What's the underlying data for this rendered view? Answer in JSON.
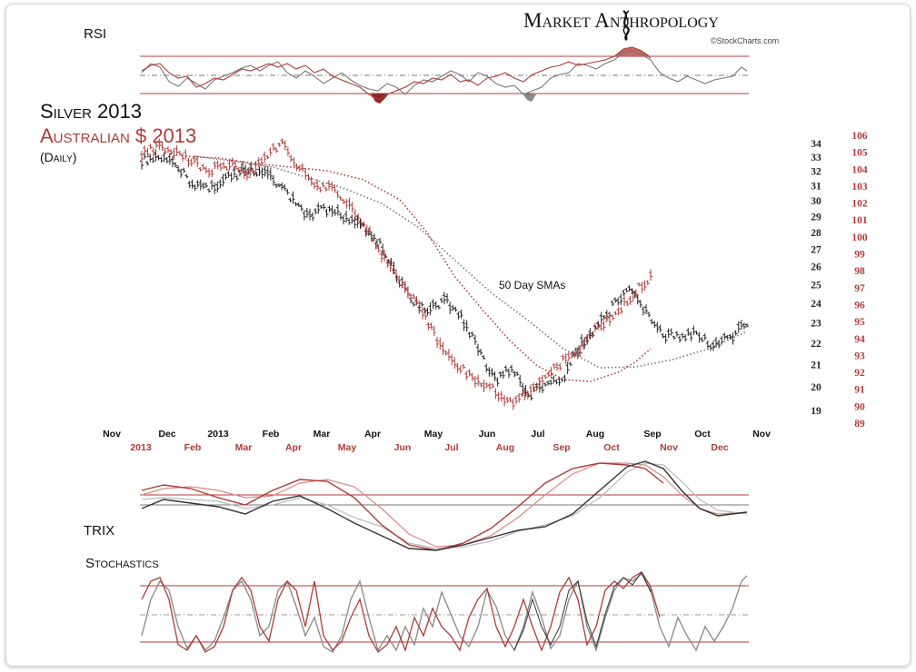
{
  "brand": {
    "name": "Market Anthropology",
    "credit": "©StockCharts.com"
  },
  "colors": {
    "silver": "#222222",
    "aud": "#b03a36",
    "silver_light": "#9a9a9a",
    "aud_light": "#d98a86"
  },
  "panels": {
    "rsi": "RSI",
    "trix": "TRIX",
    "stochastics": "Stochastics"
  },
  "chart_data": {
    "type": "line",
    "title": "Silver 2013",
    "subtitle": "Australian $ 2013",
    "period": "(Daily)",
    "annotation": "50 Day SMAs",
    "x_ticks_silver": [
      "Nov",
      "Dec",
      "2013",
      "Feb",
      "Mar",
      "Apr",
      "May",
      "Jun",
      "Jul",
      "Aug",
      "Sep",
      "Oct",
      "Nov"
    ],
    "x_ticks_aud": [
      "2013",
      "Feb",
      "Mar",
      "Apr",
      "May",
      "Jun",
      "Jul",
      "Aug",
      "Sep",
      "Oct",
      "Nov",
      "Dec"
    ],
    "y_ticks_silver": [
      "34",
      "33",
      "32",
      "31",
      "30",
      "29",
      "28",
      "27",
      "26",
      "25",
      "24",
      "23",
      "22",
      "21",
      "20",
      "19"
    ],
    "y_ticks_aud": [
      "106",
      "105",
      "104",
      "103",
      "102",
      "101",
      "100",
      "99",
      "98",
      "97",
      "96",
      "95",
      "94",
      "93",
      "92",
      "91",
      "90",
      "89"
    ],
    "series": [
      {
        "name": "Silver 2013",
        "values": [
          32.8,
          32.9,
          32.4,
          31.2,
          30.8,
          31.5,
          32.0,
          32.1,
          31.2,
          30.0,
          29.0,
          29.5,
          29.0,
          28.6,
          27.5,
          25.8,
          24.2,
          23.5,
          24.2,
          23.3,
          21.7,
          20.3,
          20.8,
          19.6,
          20.1,
          20.3,
          21.8,
          22.8,
          23.8,
          24.6,
          23.6,
          22.3,
          22.4,
          22.6,
          21.8,
          22.3,
          23.0
        ]
      },
      {
        "name": "Australian $ 2013",
        "values": [
          104.9,
          105.3,
          105.0,
          104.3,
          104.0,
          104.3,
          103.8,
          104.6,
          105.7,
          104.0,
          103.0,
          102.7,
          101.8,
          100.2,
          98.4,
          97.0,
          95.5,
          93.7,
          92.5,
          91.5,
          91.0,
          90.2,
          90.6,
          91.7,
          92.6,
          93.4,
          94.7,
          95.5,
          96.7,
          97.5
        ]
      }
    ]
  }
}
